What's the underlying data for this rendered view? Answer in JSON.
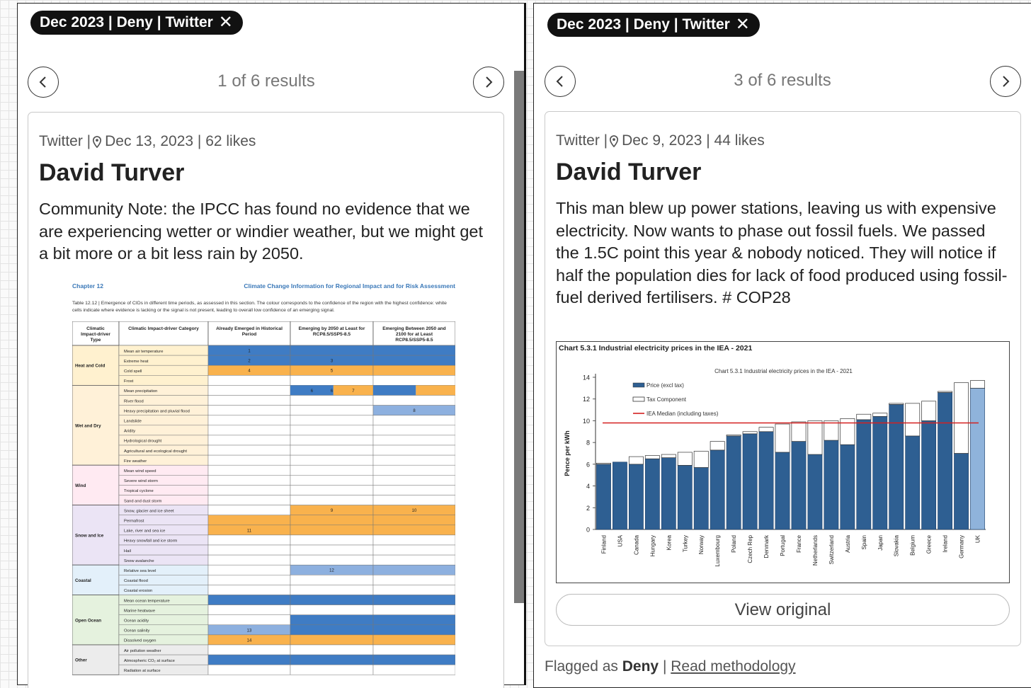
{
  "left": {
    "filter_chip": "Dec 2023 | Deny | Twitter",
    "results_text": "1 of 6 results",
    "card": {
      "platform": "Twitter |",
      "meta_rest": "Dec 13, 2023 | 62 likes",
      "author": "David Turver",
      "text": "Community Note: the IPCC has found no evidence that we are experiencing wetter or windier weather, but we might get a bit more or a bit less rain by 2050.",
      "image": {
        "chapter": "Chapter 12",
        "header_right": "Climate Change Information for Regional Impact and for Risk Assessment",
        "caption": "Table 12.12 | Emergence of CIDs in different time periods, as assessed in this section. The colour corresponds to the confidence of the region with the highest confidence: white cells indicate where evidence is lacking or the signal is not present, leading to overall low confidence of an emerging signal.",
        "columns": [
          "Climatic Impact-driver Type",
          "Climatic Impact-driver Category",
          "Already Emerged in Historical Period",
          "Emerging by 2050 at Least for RCP8.5/SSP5-8.5",
          "Emerging Between 2050 and 2100 for at Least RCP8.5/SSP5-8.5"
        ],
        "groups": [
          {
            "name": "Heat and Cold",
            "rows": [
              "Mean air temperature",
              "Extreme heat",
              "Cold spell",
              "Frost"
            ]
          },
          {
            "name": "Wet and Dry",
            "rows": [
              "Mean precipitation",
              "River flood",
              "Heavy precipitation and pluvial flood",
              "Landslide",
              "Aridity",
              "Hydrological drought",
              "Agricultural and ecological drought",
              "Fire weather"
            ]
          },
          {
            "name": "Wind",
            "rows": [
              "Mean wind speed",
              "Severe wind storm",
              "Tropical cyclone",
              "Sand and dust storm"
            ]
          },
          {
            "name": "Snow and Ice",
            "rows": [
              "Snow, glacier and ice sheet",
              "Permafrost",
              "Lake, river and sea ice",
              "Heavy snowfall and ice storm",
              "Hail",
              "Snow avalanche"
            ]
          },
          {
            "name": "Coastal",
            "rows": [
              "Relative sea level",
              "Coastal flood",
              "Coastal erosion"
            ]
          },
          {
            "name": "Open Ocean",
            "rows": [
              "Mean ocean temperature",
              "Marine heatwave",
              "Ocean acidity",
              "Ocean salinity",
              "Dissolved oxygen"
            ]
          },
          {
            "name": "Other",
            "rows": [
              "Air pollution weather",
              "Atmospheric CO₂ at surface",
              "Radiation at surface"
            ]
          }
        ],
        "cell_numbers": [
          "1",
          "2",
          "3",
          "4",
          "5",
          "6",
          "7",
          "8",
          "9",
          "10",
          "11",
          "12",
          "13",
          "14"
        ]
      }
    }
  },
  "right": {
    "filter_chip": "Dec 2023 | Deny | Twitter",
    "results_text": "3 of 6 results",
    "card": {
      "platform": "Twitter |",
      "meta_rest": "Dec 9, 2023 | 44 likes",
      "author": "David Turver",
      "text": "This man blew up power stations, leaving us with expensive electricity. Now wants to phase out fossil fuels. We passed the 1.5C point this year & nobody noticed. They will notice if half the population dies for lack of food produced using fossil-fuel derived fertilisers. # COP28",
      "view_original": "View original"
    },
    "footer": {
      "prefix": "Flagged as",
      "label": "Deny",
      "separator": "|",
      "link": "Read methodology"
    }
  },
  "colors": {
    "bar_price": "#2e5f92",
    "bar_uk": "#8fb3db",
    "median_line": "#d42020",
    "ipcc_blue": "#3f7cc4",
    "ipcc_light_blue": "#8db0df",
    "ipcc_orange": "#f9b24d"
  },
  "chart_data": {
    "type": "bar",
    "title": "Chart 5.3.1 Industrial electricity prices in the IEA - 2021",
    "inner_title": "Chart 5.3.1 Industrial electricity prices in the IEA - 2021",
    "ylabel": "Pence per kWh",
    "ylim": [
      0,
      14
    ],
    "yticks": [
      0,
      2,
      4,
      6,
      8,
      10,
      12,
      14
    ],
    "legend": [
      "Price (excl tax)",
      "Tax Component",
      "IEA Median (including taxes)"
    ],
    "categories": [
      "Finland",
      "USA",
      "Canada",
      "Hungary",
      "Korea",
      "Turkey",
      "Norway",
      "Luxembourg",
      "Poland",
      "Czech Rep",
      "Denmark",
      "Portugal",
      "France",
      "Netherlands",
      "Switzerland",
      "Austria",
      "Spain",
      "Japan",
      "Slovakia",
      "Belgium",
      "Greece",
      "Ireland",
      "Germany",
      "UK"
    ],
    "series": [
      {
        "name": "Price (excl tax)",
        "values": [
          6.0,
          6.2,
          6.0,
          6.5,
          6.6,
          5.9,
          5.7,
          7.3,
          8.6,
          8.8,
          9.0,
          7.1,
          8.1,
          6.9,
          8.2,
          7.8,
          10.1,
          10.4,
          11.5,
          8.6,
          10.0,
          12.6,
          7.0,
          13.0
        ]
      },
      {
        "name": "Tax Component",
        "values": [
          0.1,
          0.0,
          0.7,
          0.3,
          0.3,
          1.2,
          1.5,
          0.8,
          0.1,
          0.2,
          0.4,
          2.6,
          1.8,
          3.1,
          1.8,
          2.4,
          0.5,
          0.3,
          0.1,
          3.0,
          1.8,
          0.1,
          6.5,
          0.7
        ]
      }
    ],
    "median": 9.8
  }
}
